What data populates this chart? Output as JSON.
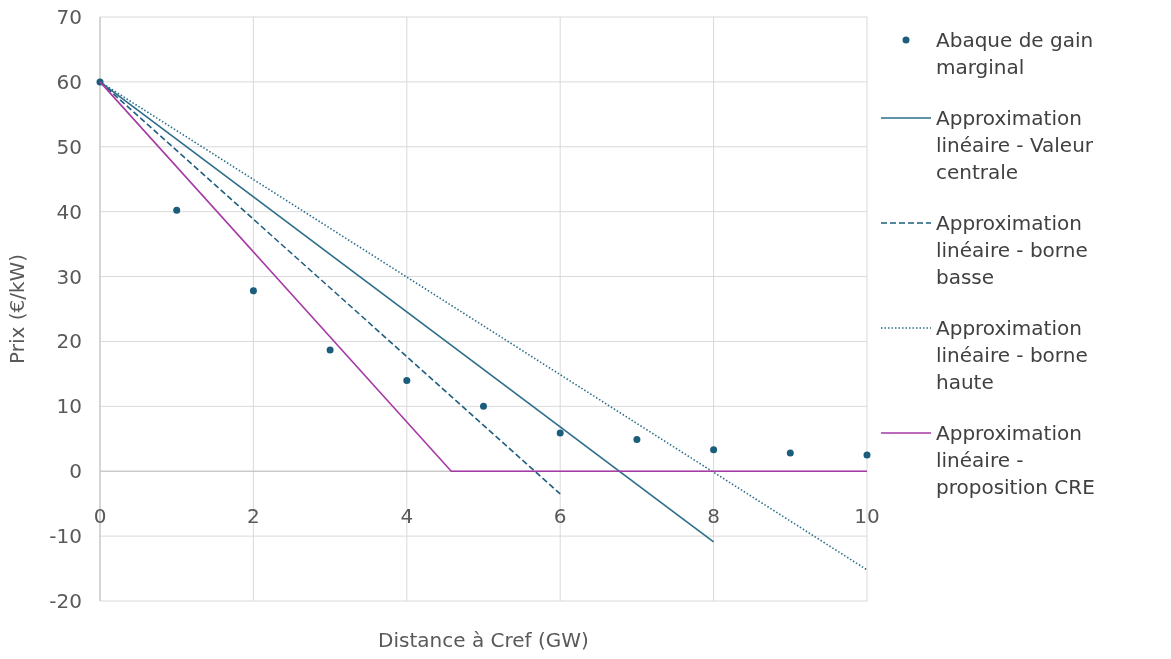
{
  "chart_data": {
    "type": "line",
    "xlabel": "Distance à Cref (GW)",
    "ylabel": "Prix (€/kW)",
    "xlim": [
      0,
      10
    ],
    "ylim": [
      -20,
      70
    ],
    "xticks": [
      0,
      2,
      4,
      6,
      8,
      10
    ],
    "yticks": [
      -20,
      -10,
      0,
      10,
      20,
      30,
      40,
      50,
      60,
      70
    ],
    "grid": true,
    "legend": "right",
    "series": [
      {
        "name": "Abaque de gain marginal",
        "type": "scatter",
        "marker": "circle",
        "color": "#1b5e7b",
        "x": [
          0,
          1,
          2,
          3,
          4,
          5,
          6,
          7,
          8,
          9,
          10
        ],
        "values": [
          60,
          40.2,
          27.8,
          18.7,
          14,
          10,
          5.9,
          4.9,
          3.3,
          2.8,
          2.5
        ]
      },
      {
        "name": "Approximation linéaire - Valeur centrale",
        "color": "#2c6e8a",
        "line_style": "solid",
        "x": [
          0,
          8
        ],
        "values": [
          60,
          -10.9
        ]
      },
      {
        "name": "Approximation linéaire - borne basse",
        "color": "#1f5f7f",
        "line_style": "dashed",
        "x": [
          0,
          6
        ],
        "values": [
          60,
          -3.5
        ]
      },
      {
        "name": "Approximation linéaire - borne haute",
        "color": "#2c6e8a",
        "line_style": "dotted",
        "x": [
          0,
          10
        ],
        "values": [
          60,
          -15.2
        ]
      },
      {
        "name": "Approximation linéaire - proposition CRE",
        "color": "#a63aa6",
        "line_style": "solid",
        "x": [
          0,
          4.58,
          10
        ],
        "values": [
          60,
          0,
          0
        ]
      }
    ]
  }
}
